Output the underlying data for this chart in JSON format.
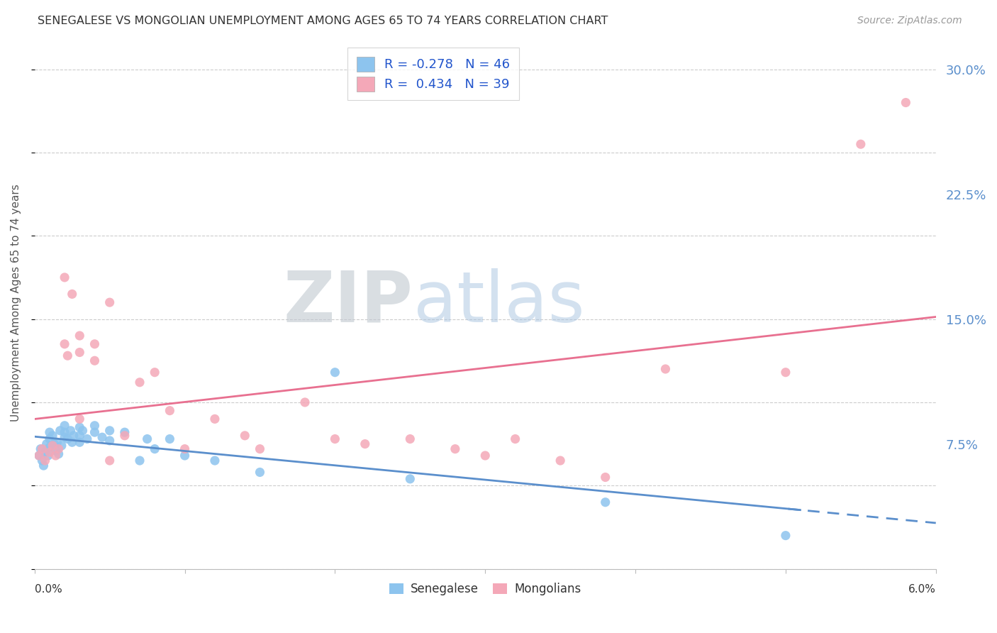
{
  "title": "SENEGALESE VS MONGOLIAN UNEMPLOYMENT AMONG AGES 65 TO 74 YEARS CORRELATION CHART",
  "source": "Source: ZipAtlas.com",
  "ylabel": "Unemployment Among Ages 65 to 74 years",
  "xlim": [
    0.0,
    0.06
  ],
  "ylim": [
    0.0,
    0.32
  ],
  "yticks": [
    0.075,
    0.15,
    0.225,
    0.3
  ],
  "ytick_labels": [
    "7.5%",
    "15.0%",
    "22.5%",
    "30.0%"
  ],
  "xtick_start": "0.0%",
  "xtick_end": "6.0%",
  "blue_color": "#8DC4EE",
  "pink_color": "#F4A8B8",
  "blue_line_color": "#5B8FCC",
  "pink_line_color": "#E87090",
  "legend_r_blue": "R = -0.278",
  "legend_n_blue": "N = 46",
  "legend_r_pink": "R =  0.434",
  "legend_n_pink": "N = 39",
  "senegalese_x": [
    0.0003,
    0.0004,
    0.0005,
    0.0006,
    0.0007,
    0.0008,
    0.0009,
    0.001,
    0.001,
    0.001,
    0.0012,
    0.0013,
    0.0014,
    0.0015,
    0.0016,
    0.0017,
    0.0018,
    0.002,
    0.002,
    0.002,
    0.0022,
    0.0024,
    0.0025,
    0.0026,
    0.003,
    0.003,
    0.003,
    0.0032,
    0.0035,
    0.004,
    0.004,
    0.0045,
    0.005,
    0.005,
    0.006,
    0.007,
    0.0075,
    0.008,
    0.009,
    0.01,
    0.012,
    0.015,
    0.02,
    0.025,
    0.038,
    0.05
  ],
  "senegalese_y": [
    0.068,
    0.072,
    0.065,
    0.062,
    0.07,
    0.075,
    0.068,
    0.078,
    0.082,
    0.073,
    0.08,
    0.075,
    0.071,
    0.076,
    0.069,
    0.083,
    0.074,
    0.082,
    0.079,
    0.086,
    0.078,
    0.083,
    0.076,
    0.08,
    0.085,
    0.08,
    0.076,
    0.083,
    0.078,
    0.082,
    0.086,
    0.079,
    0.083,
    0.077,
    0.082,
    0.065,
    0.078,
    0.072,
    0.078,
    0.068,
    0.065,
    0.058,
    0.118,
    0.054,
    0.04,
    0.02
  ],
  "mongolian_x": [
    0.0003,
    0.0005,
    0.0007,
    0.001,
    0.0012,
    0.0014,
    0.0016,
    0.002,
    0.002,
    0.0022,
    0.0025,
    0.003,
    0.003,
    0.003,
    0.004,
    0.004,
    0.005,
    0.005,
    0.006,
    0.007,
    0.008,
    0.009,
    0.01,
    0.012,
    0.014,
    0.015,
    0.018,
    0.02,
    0.022,
    0.025,
    0.028,
    0.03,
    0.032,
    0.035,
    0.038,
    0.042,
    0.05,
    0.055,
    0.058
  ],
  "mongolian_y": [
    0.068,
    0.072,
    0.065,
    0.07,
    0.074,
    0.068,
    0.072,
    0.175,
    0.135,
    0.128,
    0.165,
    0.13,
    0.14,
    0.09,
    0.125,
    0.135,
    0.16,
    0.065,
    0.08,
    0.112,
    0.118,
    0.095,
    0.072,
    0.09,
    0.08,
    0.072,
    0.1,
    0.078,
    0.075,
    0.078,
    0.072,
    0.068,
    0.078,
    0.065,
    0.055,
    0.12,
    0.118,
    0.255,
    0.28
  ],
  "watermark_zip": "ZIP",
  "watermark_atlas": "atlas",
  "background_color": "#ffffff",
  "grid_color": "#cccccc"
}
